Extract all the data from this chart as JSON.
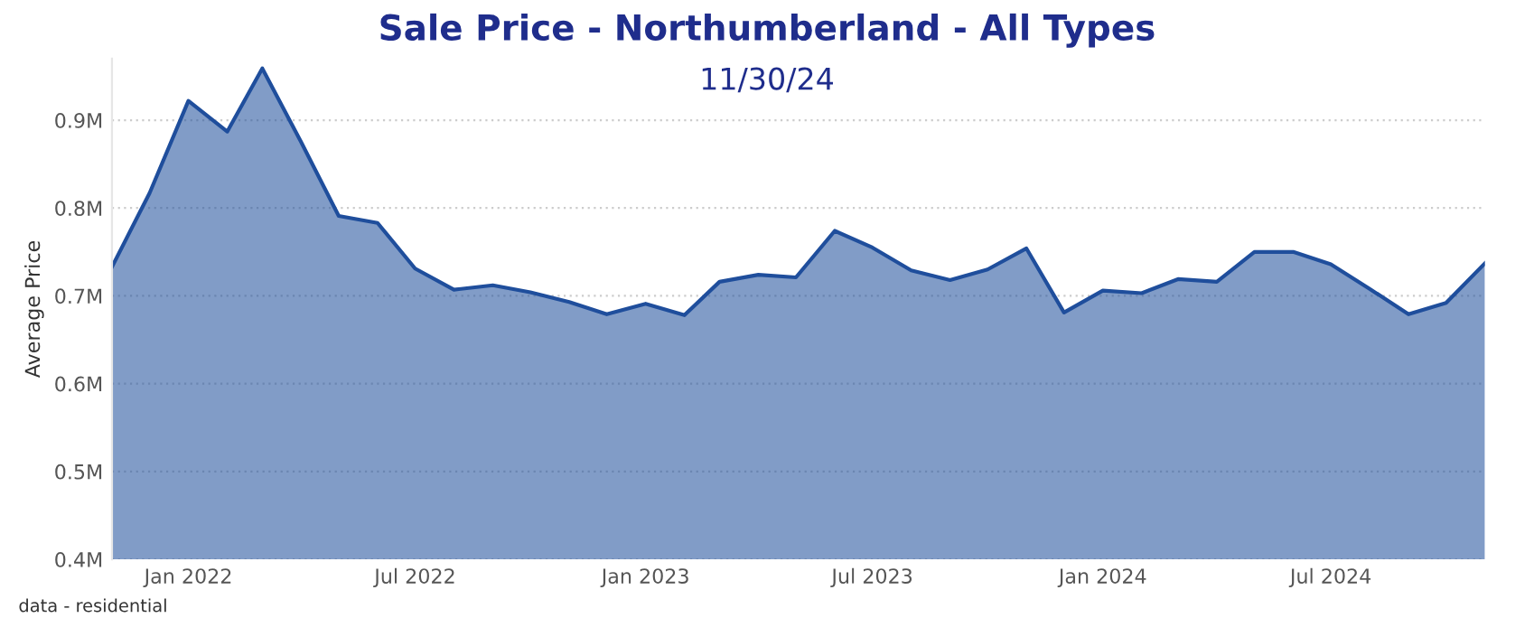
{
  "chart_data": {
    "type": "area",
    "title": "Sale Price - Northumberland - All Types",
    "subtitle": "11/30/24",
    "ylabel": "Average Price",
    "annotations": [
      "data - residential"
    ],
    "x": [
      "2021-11",
      "2021-12",
      "2022-01",
      "2022-02",
      "2022-03",
      "2022-04",
      "2022-05",
      "2022-06",
      "2022-07",
      "2022-08",
      "2022-09",
      "2022-10",
      "2022-11",
      "2022-12",
      "2023-01",
      "2023-02",
      "2023-03",
      "2023-04",
      "2023-05",
      "2023-06",
      "2023-07",
      "2023-08",
      "2023-09",
      "2023-10",
      "2023-11",
      "2023-12",
      "2024-01",
      "2024-02",
      "2024-03",
      "2024-04",
      "2024-05",
      "2024-06",
      "2024-07",
      "2024-08",
      "2024-09",
      "2024-10",
      "2024-11"
    ],
    "series": [
      {
        "color": "#1f4e9c",
        "values": [
          0.733,
          0.817,
          0.922,
          0.887,
          0.959,
          0.875,
          0.791,
          0.783,
          0.731,
          0.707,
          0.712,
          0.704,
          0.693,
          0.679,
          0.691,
          0.678,
          0.716,
          0.724,
          0.721,
          0.774,
          0.755,
          0.729,
          0.718,
          0.73,
          0.754,
          0.681,
          0.706,
          0.703,
          0.719,
          0.716,
          0.75,
          0.75,
          0.736,
          0.708,
          0.679,
          0.692,
          0.737
        ]
      }
    ],
    "xlim": [
      "2021-11",
      "2024-11"
    ],
    "xticks": [
      {
        "value": "2022-01",
        "label": "Jan 2022"
      },
      {
        "value": "2022-07",
        "label": "Jul 2022"
      },
      {
        "value": "2023-01",
        "label": "Jan 2023"
      },
      {
        "value": "2023-07",
        "label": "Jul 2023"
      },
      {
        "value": "2024-01",
        "label": "Jan 2024"
      },
      {
        "value": "2024-07",
        "label": "Jul 2024"
      }
    ],
    "ylim": [
      0.4,
      0.97
    ],
    "yticks": [
      {
        "value": 0.4,
        "label": "0.4M"
      },
      {
        "value": 0.5,
        "label": "0.5M"
      },
      {
        "value": 0.6,
        "label": "0.6M"
      },
      {
        "value": 0.7,
        "label": "0.7M"
      },
      {
        "value": 0.8,
        "label": "0.8M"
      },
      {
        "value": 0.9,
        "label": "0.9M"
      }
    ],
    "grid": "y",
    "legend": false
  }
}
